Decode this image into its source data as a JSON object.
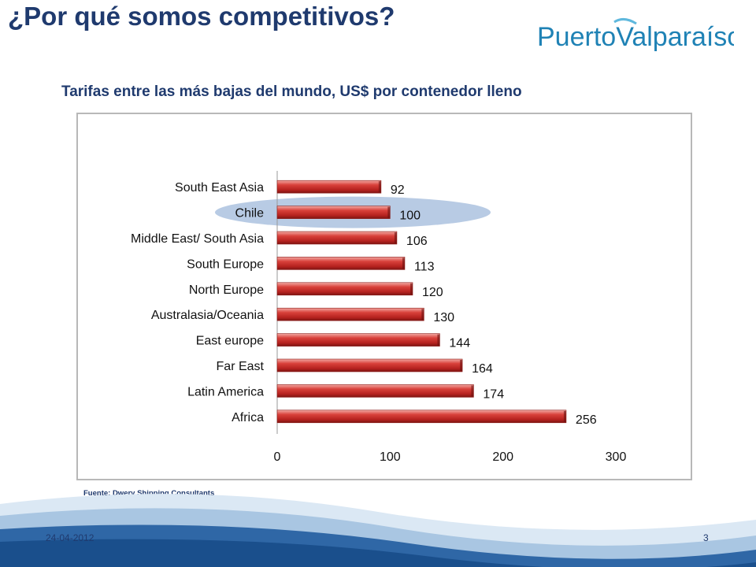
{
  "slide": {
    "title": "¿Por qué somos competitivos?",
    "subtitle": "Tarifas entre las más bajas del mundo, US$ por contenedor lleno",
    "source": "Fuente: Dwery Shipping Consultants",
    "date": "24-04-2012",
    "page_number": "3"
  },
  "logo": {
    "text_part1": "Puerto",
    "text_part2": "Valparaíso",
    "icon": "wave-v-logo",
    "color": "#1f82b5"
  },
  "colors": {
    "title": "#1f3a6e",
    "bar": "#c0322f",
    "highlight": "#b8cbe4",
    "wave": "#1a4f8c"
  },
  "chart_data": {
    "type": "bar",
    "orientation": "horizontal",
    "categories": [
      "South East Asia",
      "Chile",
      "Middle East/ South Asia",
      "South Europe",
      "North Europe",
      "Australasia/Oceania",
      "East europe",
      "Far East",
      "Latin America",
      "Africa"
    ],
    "values": [
      92,
      100,
      106,
      113,
      120,
      130,
      144,
      164,
      174,
      256
    ],
    "value_labels": [
      "92",
      "100",
      "106",
      "113",
      "120",
      "130",
      "144",
      "164",
      "174",
      "256"
    ],
    "xlim": [
      0,
      300
    ],
    "x_ticks": [
      "0",
      "100",
      "200",
      "300"
    ],
    "highlight_category": "Chile",
    "grid": false,
    "legend": "none"
  }
}
